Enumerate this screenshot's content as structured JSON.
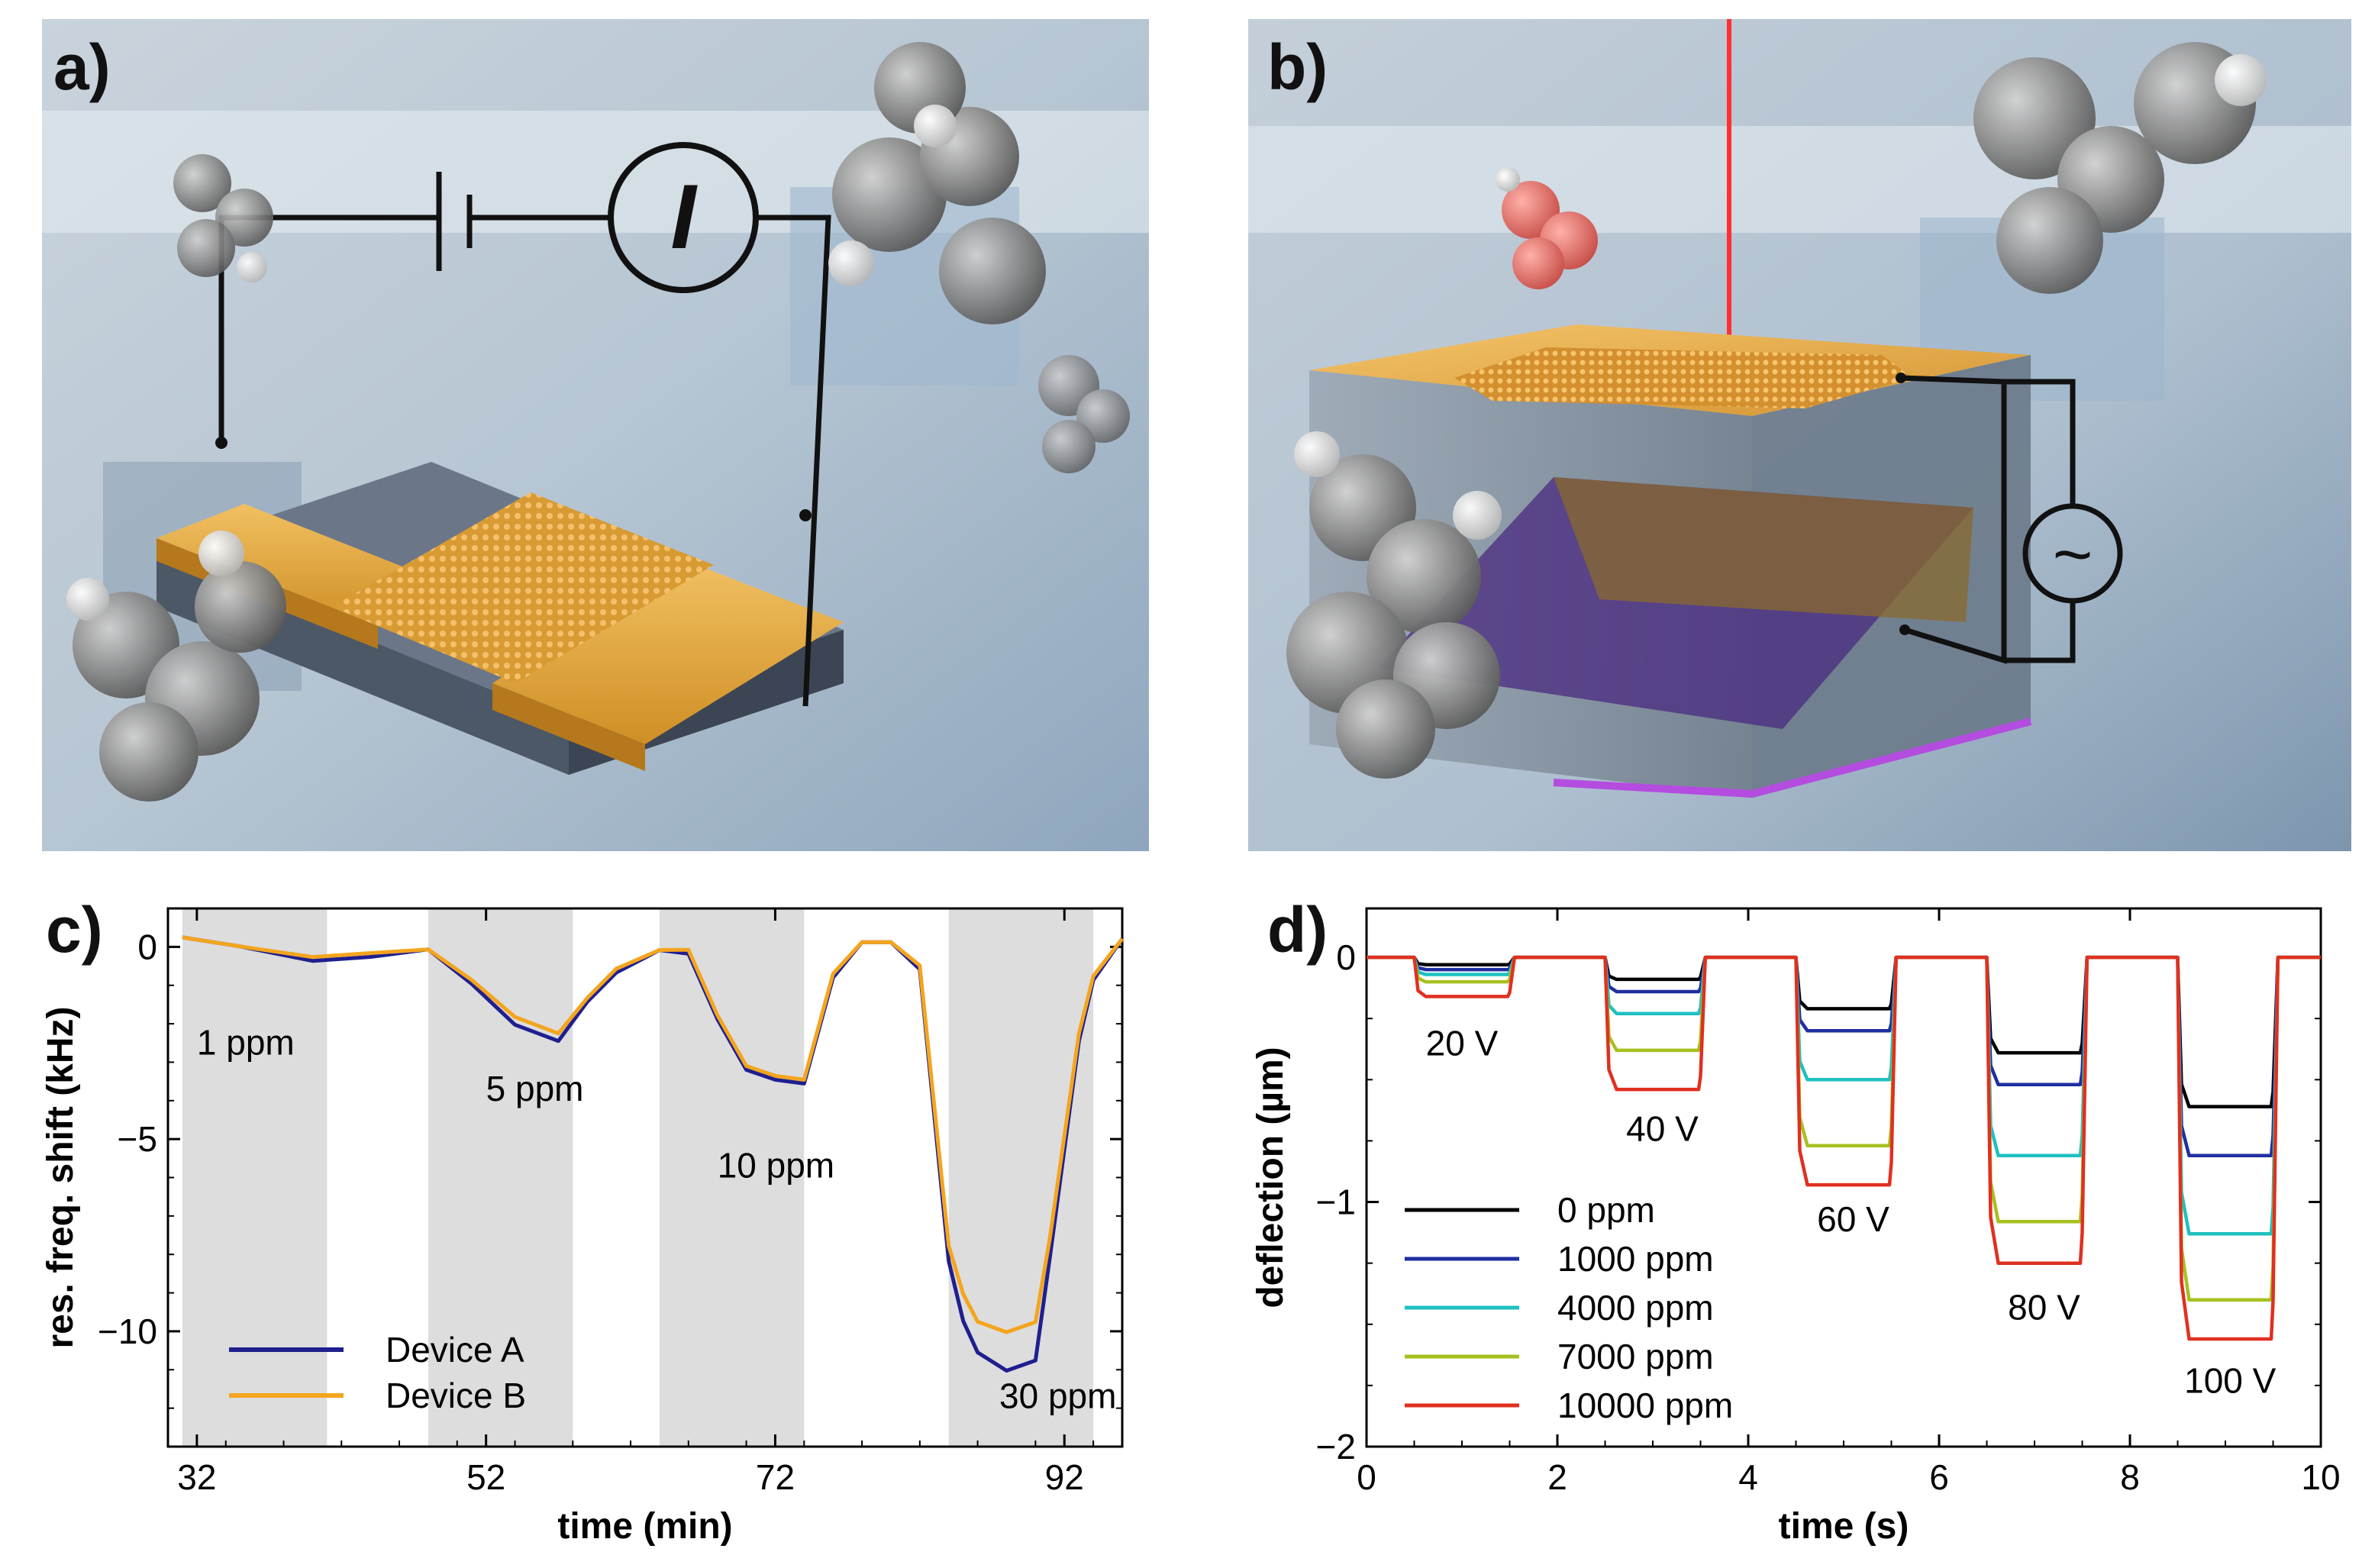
{
  "figure": {
    "panels": {
      "a": {
        "label": "a)"
      },
      "b": {
        "label": "b)"
      },
      "c": {
        "label": "c)"
      },
      "d": {
        "label": "d)"
      }
    },
    "panel_a": {
      "meter_symbol": "I"
    },
    "panel_b": {
      "ac_source_symbol": "~"
    }
  },
  "colors": {
    "gold": "#e8a83a",
    "device_a": "#1f1f8f",
    "device_b": "#f4a51e",
    "laser": "#ff3030",
    "purple_layer": "#8a2be2",
    "shade": "#dddddd"
  },
  "chart_data": [
    {
      "id": "c",
      "type": "line",
      "xlabel": "time (min)",
      "ylabel": "res. freq. shift (kHz)",
      "xlim": [
        30,
        96
      ],
      "ylim": [
        -13,
        1
      ],
      "xticks": [
        32,
        52,
        72,
        92
      ],
      "yticks": [
        0,
        -5,
        -10
      ],
      "ytick_labels": [
        "0",
        "−5",
        "−10"
      ],
      "shaded_intervals": [
        [
          31,
          41
        ],
        [
          48,
          58
        ],
        [
          64,
          74
        ],
        [
          84,
          94
        ]
      ],
      "annotations": [
        {
          "text": "1 ppm",
          "x": 32,
          "y": -2.8
        },
        {
          "text": "5 ppm",
          "x": 52,
          "y": -4.0
        },
        {
          "text": "10 ppm",
          "x": 68,
          "y": -6.0
        },
        {
          "text": "30 ppm",
          "x": 87.5,
          "y": -12.0
        }
      ],
      "legend": {
        "position": "bottom-left",
        "entries": [
          "Device A",
          "Device B"
        ]
      },
      "series": [
        {
          "name": "Device A",
          "color": "#1f1f8f",
          "x": [
            31,
            35,
            40,
            44,
            48,
            51,
            54,
            57,
            59,
            61,
            64,
            66,
            68,
            70,
            72,
            74,
            76,
            78,
            80,
            82,
            84,
            85,
            86,
            88,
            90,
            91,
            93,
            94,
            96
          ],
          "y": [
            0,
            -0.2,
            -0.5,
            -0.3,
            0,
            -0.8,
            -1.8,
            -2.2,
            -1.2,
            -0.5,
            0,
            -0.2,
            -2.0,
            -3.4,
            -3.7,
            -3.8,
            -1.0,
            0,
            0.1,
            -0.5,
            -8.0,
            -9.5,
            -10.3,
            -10.8,
            -10.6,
            -8.0,
            -2.5,
            -1.0,
            0
          ]
        },
        {
          "name": "Device B",
          "color": "#f4a51e",
          "x": [
            31,
            35,
            40,
            44,
            48,
            51,
            54,
            57,
            59,
            61,
            64,
            66,
            68,
            70,
            72,
            74,
            76,
            78,
            80,
            82,
            84,
            85,
            86,
            88,
            90,
            91,
            93,
            94,
            96
          ],
          "y": [
            0,
            -0.2,
            -0.4,
            -0.2,
            0,
            -0.7,
            -1.6,
            -2.0,
            -1.1,
            -0.4,
            0,
            -0.1,
            -1.9,
            -3.3,
            -3.6,
            -3.7,
            -0.9,
            0,
            0.1,
            -0.4,
            -7.6,
            -8.8,
            -9.5,
            -9.8,
            -9.6,
            -7.5,
            -2.3,
            -0.9,
            0
          ]
        }
      ]
    },
    {
      "id": "d",
      "type": "line",
      "xlabel": "time (s)",
      "ylabel": "deflection (µm)",
      "xlim": [
        0,
        10
      ],
      "ylim": [
        -2,
        0.2
      ],
      "xticks": [
        0,
        2,
        4,
        6,
        8,
        10
      ],
      "yticks": [
        0,
        -1,
        -2
      ],
      "ytick_labels": [
        "0",
        "−1",
        "−2"
      ],
      "pulse_starts": [
        0.5,
        2.5,
        4.5,
        6.5,
        8.5
      ],
      "pulse_width": 1.0,
      "voltage_labels": [
        {
          "text": "20 V",
          "x": 1.0,
          "y": -0.4
        },
        {
          "text": "40 V",
          "x": 3.1,
          "y": -0.75
        },
        {
          "text": "60 V",
          "x": 5.1,
          "y": -1.12
        },
        {
          "text": "80 V",
          "x": 7.1,
          "y": -1.48
        },
        {
          "text": "100 V",
          "x": 9.05,
          "y": -1.78
        }
      ],
      "legend": {
        "position": "bottom-left",
        "entries": [
          "0 ppm",
          "1000 ppm",
          "4000 ppm",
          "7000 ppm",
          "10000 ppm"
        ]
      },
      "series": [
        {
          "name": "0 ppm",
          "color": "#000000",
          "levels": [
            -0.03,
            -0.09,
            -0.21,
            -0.39,
            -0.61
          ]
        },
        {
          "name": "1000 ppm",
          "color": "#1f2f9f",
          "levels": [
            -0.05,
            -0.14,
            -0.3,
            -0.52,
            -0.81
          ]
        },
        {
          "name": "4000 ppm",
          "color": "#1fc0c0",
          "levels": [
            -0.07,
            -0.23,
            -0.5,
            -0.81,
            -1.13
          ]
        },
        {
          "name": "7000 ppm",
          "color": "#a8c020",
          "levels": [
            -0.1,
            -0.38,
            -0.77,
            -1.08,
            -1.4
          ]
        },
        {
          "name": "10000 ppm",
          "color": "#e03020",
          "levels": [
            -0.16,
            -0.54,
            -0.93,
            -1.25,
            -1.56
          ]
        }
      ]
    }
  ]
}
